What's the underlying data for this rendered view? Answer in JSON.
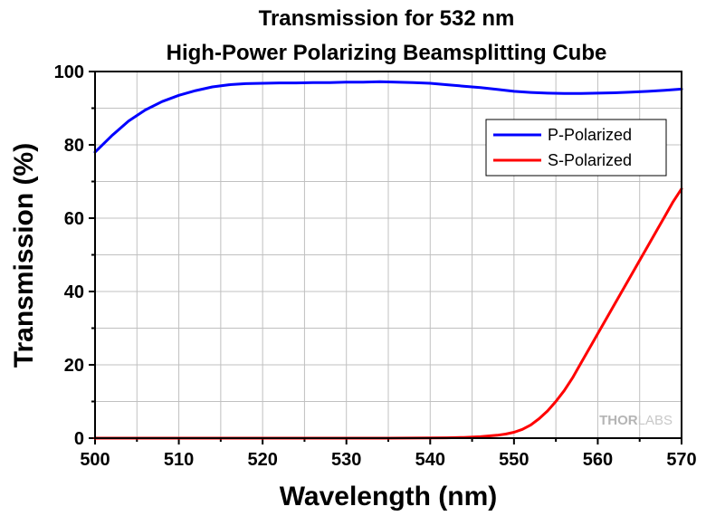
{
  "colors": {
    "p_polarized": "#0000ff",
    "s_polarized": "#ff0000",
    "grid": "#c0c0c0",
    "axis": "#000000"
  },
  "watermark": {
    "part1": "THOR",
    "part2": "LABS"
  },
  "chart_data": {
    "type": "line",
    "title": "Transmission for 532 nm",
    "subtitle": "High-Power Polarizing Beamsplitting Cube",
    "xlabel": "Wavelength (nm)",
    "ylabel": "Transmission (%)",
    "xlim": [
      500,
      570
    ],
    "ylim": [
      0,
      100
    ],
    "x_ticks": [
      "500",
      "510",
      "520",
      "530",
      "540",
      "550",
      "560",
      "570"
    ],
    "y_ticks": [
      "0",
      "20",
      "40",
      "60",
      "80",
      "100"
    ],
    "grid": true,
    "legend_position": "top-right",
    "series": [
      {
        "name": "P-Polarized",
        "color": "#0000ff",
        "x": [
          500,
          502,
          504,
          506,
          508,
          510,
          512,
          514,
          516,
          518,
          520,
          522,
          524,
          526,
          528,
          530,
          532,
          534,
          536,
          538,
          540,
          542,
          544,
          546,
          548,
          550,
          552,
          554,
          556,
          558,
          560,
          562,
          564,
          566,
          568,
          570
        ],
        "y": [
          78,
          82.5,
          86.5,
          89.5,
          91.8,
          93.5,
          94.8,
          95.8,
          96.4,
          96.7,
          96.8,
          96.9,
          96.9,
          97.0,
          97.0,
          97.1,
          97.1,
          97.2,
          97.1,
          97.0,
          96.8,
          96.4,
          96.0,
          95.6,
          95.1,
          94.6,
          94.3,
          94.1,
          94.0,
          94.0,
          94.1,
          94.2,
          94.4,
          94.6,
          94.9,
          95.2
        ]
      },
      {
        "name": "S-Polarized",
        "color": "#ff0000",
        "x": [
          500,
          510,
          520,
          530,
          535,
          540,
          542,
          544,
          546,
          548,
          549,
          550,
          551,
          552,
          553,
          554,
          555,
          556,
          557,
          558,
          559,
          560,
          561,
          562,
          563,
          564,
          565,
          566,
          567,
          568,
          569,
          570
        ],
        "y": [
          0,
          0,
          0,
          0,
          0,
          0.05,
          0.1,
          0.2,
          0.4,
          0.8,
          1.1,
          1.6,
          2.4,
          3.6,
          5.3,
          7.4,
          10,
          13,
          16.5,
          20.5,
          24.5,
          28.5,
          32.5,
          36.5,
          40.5,
          44.5,
          48.5,
          52.5,
          56.5,
          60.5,
          64.5,
          68
        ]
      }
    ]
  }
}
